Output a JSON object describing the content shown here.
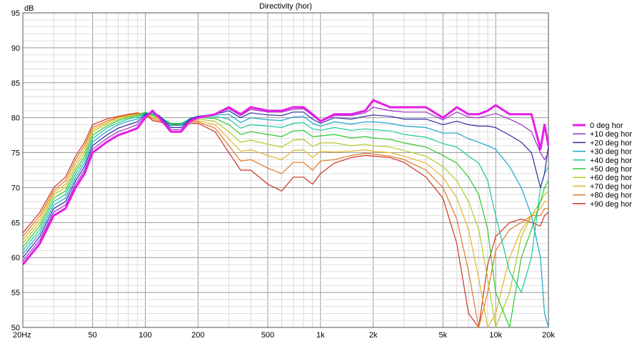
{
  "chart_data": {
    "type": "line",
    "title": "Directivity (hor)",
    "ylabel": "dB",
    "xscale": "log",
    "xlim": [
      20,
      20000
    ],
    "ylim": [
      50,
      95
    ],
    "y_ticks": [
      50,
      55,
      60,
      65,
      70,
      75,
      80,
      85,
      90,
      95
    ],
    "x_ticks": [
      {
        "value": 20,
        "label": "20Hz"
      },
      {
        "value": 50,
        "label": "50"
      },
      {
        "value": 100,
        "label": "100"
      },
      {
        "value": 200,
        "label": "200"
      },
      {
        "value": 500,
        "label": "500"
      },
      {
        "value": 1000,
        "label": "1k"
      },
      {
        "value": 2000,
        "label": "2k"
      },
      {
        "value": 5000,
        "label": "5k"
      },
      {
        "value": 10000,
        "label": "10k"
      },
      {
        "value": 20000,
        "label": "20k"
      }
    ],
    "grid": true,
    "legend_position": "right",
    "series": [
      {
        "name": "0 deg hor",
        "color": "#e61ee6",
        "x": [
          20,
          25,
          30,
          35,
          40,
          45,
          50,
          60,
          70,
          80,
          90,
          100,
          110,
          120,
          140,
          160,
          180,
          200,
          250,
          300,
          350,
          400,
          500,
          600,
          700,
          800,
          900,
          1000,
          1200,
          1500,
          1800,
          2000,
          2500,
          3000,
          4000,
          5000,
          6000,
          7000,
          8000,
          9000,
          10000,
          12000,
          14000,
          16000,
          18000,
          19000,
          20000
        ],
        "y": [
          59,
          62,
          66,
          67,
          70,
          72,
          75,
          76.5,
          77.5,
          78,
          78.5,
          80,
          81,
          80,
          78,
          78,
          79.5,
          80,
          80.5,
          81.5,
          80.5,
          81.5,
          81,
          81,
          81.5,
          81.5,
          80.5,
          79.5,
          80.5,
          80.5,
          81,
          82.5,
          81.5,
          81.5,
          81.5,
          80,
          81.5,
          80.5,
          80.5,
          81,
          81.8,
          80.5,
          80.5,
          80.5,
          75.5,
          79,
          76
        ]
      },
      {
        "name": "+10 deg hor",
        "color": "#9b30c8",
        "x": [
          20,
          25,
          30,
          35,
          40,
          45,
          50,
          60,
          70,
          80,
          90,
          100,
          110,
          120,
          140,
          160,
          180,
          200,
          250,
          300,
          350,
          400,
          500,
          600,
          700,
          800,
          900,
          1000,
          1200,
          1500,
          1800,
          2000,
          2500,
          3000,
          4000,
          5000,
          6000,
          7000,
          8000,
          9000,
          10000,
          12000,
          14000,
          16000,
          18000,
          19000,
          20000
        ],
        "y": [
          59.5,
          62.5,
          66.5,
          67.5,
          70.5,
          72.5,
          75.5,
          77,
          78,
          78.5,
          79,
          80.3,
          81,
          80.2,
          78.3,
          78.3,
          79.7,
          80.1,
          80.5,
          81.3,
          80.3,
          81.2,
          80.8,
          80.8,
          81.2,
          81.3,
          80.3,
          79.4,
          80.3,
          80.3,
          80.7,
          81.5,
          81,
          80.8,
          80.8,
          79.7,
          80.8,
          80.1,
          80,
          80.3,
          80.6,
          79.8,
          79,
          78,
          75,
          74,
          75
        ]
      },
      {
        "name": "+20 deg hor",
        "color": "#2b2ba0",
        "x": [
          20,
          25,
          30,
          35,
          40,
          45,
          50,
          60,
          70,
          80,
          90,
          100,
          110,
          120,
          140,
          160,
          180,
          200,
          250,
          300,
          350,
          400,
          500,
          600,
          700,
          800,
          900,
          1000,
          1200,
          1500,
          1800,
          2000,
          2500,
          3000,
          4000,
          5000,
          6000,
          7000,
          8000,
          9000,
          10000,
          12000,
          14000,
          16000,
          18000,
          19000,
          20000
        ],
        "y": [
          60,
          63,
          67,
          68,
          71,
          73,
          76,
          77.5,
          78.5,
          79,
          79.4,
          80.5,
          80.8,
          80.3,
          78.6,
          78.6,
          79.8,
          80.2,
          80.5,
          81,
          80,
          80.7,
          80.4,
          80.3,
          80.8,
          80.8,
          79.8,
          79.2,
          80,
          79.8,
          80.2,
          80.4,
          80.2,
          79.8,
          79.8,
          79,
          79.5,
          79,
          78.8,
          78.8,
          78.6,
          77.5,
          76.5,
          75,
          70,
          72,
          76
        ]
      },
      {
        "name": "+30 deg hor",
        "color": "#1aa6c8",
        "x": [
          20,
          25,
          30,
          35,
          40,
          45,
          50,
          60,
          70,
          80,
          90,
          100,
          110,
          120,
          140,
          160,
          180,
          200,
          250,
          300,
          350,
          400,
          500,
          600,
          700,
          800,
          900,
          1000,
          1200,
          1500,
          1800,
          2000,
          2500,
          3000,
          4000,
          5000,
          6000,
          7000,
          8000,
          9000,
          10000,
          12000,
          14000,
          16000,
          18000,
          19000,
          20000
        ],
        "y": [
          60.5,
          63.5,
          67.5,
          68.5,
          71.5,
          73.5,
          76.5,
          78,
          79,
          79.5,
          79.8,
          80.6,
          80.6,
          80.3,
          78.9,
          78.9,
          79.9,
          80.2,
          80.4,
          80.5,
          79.3,
          80,
          79.7,
          79.6,
          80.1,
          80.2,
          79.2,
          78.8,
          79.4,
          79.1,
          79.4,
          79.4,
          79.2,
          78.8,
          78.6,
          77.8,
          77.8,
          77,
          76.5,
          76,
          75.5,
          73,
          70,
          66,
          60,
          52,
          50
        ]
      },
      {
        "name": "+40 deg hor",
        "color": "#1ac8a0",
        "x": [
          20,
          25,
          30,
          35,
          40,
          45,
          50,
          60,
          70,
          80,
          90,
          100,
          110,
          120,
          140,
          160,
          180,
          200,
          250,
          300,
          350,
          400,
          500,
          600,
          700,
          800,
          900,
          1000,
          1200,
          1500,
          1800,
          2000,
          2500,
          3000,
          4000,
          5000,
          6000,
          7000,
          8000,
          9000,
          10000,
          12000,
          14000,
          16000,
          18000,
          19000,
          20000
        ],
        "y": [
          61,
          64,
          68,
          69,
          72,
          74,
          77,
          78.5,
          79.3,
          79.8,
          80.1,
          80.7,
          80.5,
          80.2,
          79.1,
          79.1,
          79.9,
          80.1,
          80.2,
          79.8,
          78.5,
          79,
          78.8,
          78.6,
          79.2,
          79.3,
          78.4,
          78.2,
          78.6,
          78.2,
          78.4,
          78.3,
          78.1,
          77.6,
          77.2,
          76.3,
          75.8,
          74.5,
          73.5,
          71,
          66,
          58,
          55,
          60,
          70,
          72,
          73
        ]
      },
      {
        "name": "+50 deg hor",
        "color": "#2ec82e",
        "x": [
          20,
          25,
          30,
          35,
          40,
          45,
          50,
          60,
          70,
          80,
          90,
          100,
          110,
          120,
          140,
          160,
          180,
          200,
          250,
          300,
          350,
          400,
          500,
          600,
          700,
          800,
          900,
          1000,
          1200,
          1500,
          1800,
          2000,
          2500,
          3000,
          4000,
          5000,
          6000,
          7000,
          8000,
          9000,
          10000,
          12000,
          14000,
          16000,
          18000,
          19000,
          20000
        ],
        "y": [
          61.5,
          64.5,
          68.5,
          69.5,
          72.5,
          74.5,
          77.5,
          78.8,
          79.6,
          80,
          80.3,
          80.8,
          80.4,
          80.1,
          79.2,
          79.2,
          79.8,
          80,
          79.9,
          79,
          77.6,
          78,
          77.6,
          77.3,
          78.1,
          78.2,
          77.3,
          77.4,
          77.6,
          77.1,
          77.3,
          77.1,
          76.9,
          76.4,
          75.8,
          74.6,
          73.5,
          71.5,
          69,
          64,
          55,
          50,
          60,
          64,
          68,
          70,
          71
        ]
      },
      {
        "name": "+60 deg hor",
        "color": "#b4c828",
        "x": [
          20,
          25,
          30,
          35,
          40,
          45,
          50,
          60,
          70,
          80,
          90,
          100,
          110,
          120,
          140,
          160,
          180,
          200,
          250,
          300,
          350,
          400,
          500,
          600,
          700,
          800,
          900,
          1000,
          1200,
          1500,
          1800,
          2000,
          2500,
          3000,
          4000,
          5000,
          6000,
          7000,
          8000,
          9000,
          10000,
          12000,
          14000,
          16000,
          18000,
          19000,
          20000
        ],
        "y": [
          62,
          65,
          69,
          70,
          73,
          75,
          78,
          79.1,
          79.8,
          80.2,
          80.4,
          80.8,
          80.2,
          80,
          79.2,
          79.2,
          79.7,
          79.8,
          79.5,
          78,
          76.5,
          76.8,
          76.2,
          75.8,
          76.8,
          76.9,
          75.9,
          76.4,
          76.4,
          76,
          76.2,
          76,
          75.8,
          75.3,
          74.5,
          73,
          71,
          68,
          64,
          57,
          50,
          55,
          63,
          66,
          68,
          69,
          69.5
        ]
      },
      {
        "name": "+70 deg hor",
        "color": "#e6b428",
        "x": [
          20,
          25,
          30,
          35,
          40,
          45,
          50,
          60,
          70,
          80,
          90,
          100,
          110,
          120,
          140,
          160,
          180,
          200,
          250,
          300,
          350,
          400,
          500,
          600,
          700,
          800,
          900,
          1000,
          1200,
          1500,
          1800,
          2000,
          2500,
          3000,
          4000,
          5000,
          6000,
          7000,
          8000,
          9000,
          10000,
          12000,
          14000,
          16000,
          18000,
          19000,
          20000
        ],
        "y": [
          62.5,
          65.5,
          69.3,
          70.5,
          73.5,
          75.5,
          78.3,
          79.3,
          80,
          80.3,
          80.5,
          80.7,
          80,
          79.8,
          79.2,
          79.2,
          79.6,
          79.6,
          79,
          77,
          75.2,
          75.4,
          74.6,
          74,
          75.3,
          75.4,
          74.3,
          75.2,
          75.1,
          75.2,
          75.4,
          75.2,
          75,
          74.5,
          73.5,
          71.5,
          68.5,
          64,
          57,
          50,
          52,
          60,
          64,
          66,
          67,
          68,
          68
        ]
      },
      {
        "name": "+80 deg hor",
        "color": "#e0782a",
        "x": [
          20,
          25,
          30,
          35,
          40,
          45,
          50,
          60,
          70,
          80,
          90,
          100,
          110,
          120,
          140,
          160,
          180,
          200,
          250,
          300,
          350,
          400,
          500,
          600,
          700,
          800,
          900,
          1000,
          1200,
          1500,
          1800,
          2000,
          2500,
          3000,
          4000,
          5000,
          6000,
          7000,
          8000,
          9000,
          10000,
          12000,
          14000,
          16000,
          18000,
          19000,
          20000
        ],
        "y": [
          63,
          66,
          69.6,
          71,
          74,
          76,
          78.6,
          79.5,
          80.1,
          80.4,
          80.6,
          80.6,
          79.8,
          79.6,
          79.1,
          79.1,
          79.4,
          79.4,
          78.5,
          76,
          73.8,
          74,
          72.8,
          72,
          73.6,
          73.6,
          72.5,
          73.8,
          74,
          74.6,
          74.9,
          74.8,
          74.5,
          74,
          72.5,
          70,
          65.5,
          58,
          50,
          55,
          61,
          64,
          65,
          66,
          66,
          67,
          67
        ]
      },
      {
        "name": "+90 deg hor",
        "color": "#cc3322",
        "x": [
          20,
          25,
          30,
          35,
          40,
          45,
          50,
          60,
          70,
          80,
          90,
          100,
          110,
          120,
          140,
          160,
          180,
          200,
          250,
          300,
          350,
          400,
          500,
          600,
          700,
          800,
          900,
          1000,
          1200,
          1500,
          1800,
          2000,
          2500,
          3000,
          4000,
          5000,
          6000,
          7000,
          8000,
          9000,
          10000,
          12000,
          14000,
          16000,
          18000,
          19000,
          20000
        ],
        "y": [
          63.5,
          66.5,
          70,
          71.5,
          74.5,
          76.5,
          79,
          79.8,
          80.2,
          80.5,
          80.7,
          80.5,
          79.6,
          79.4,
          79,
          79,
          79.2,
          79.2,
          78,
          75,
          72.5,
          72.5,
          70.5,
          69.5,
          71.5,
          71.5,
          70.5,
          72,
          73.5,
          74.3,
          74.6,
          74.5,
          74.3,
          73.6,
          71.5,
          68.5,
          62,
          52,
          50,
          59,
          63,
          65,
          65.5,
          65,
          64.5,
          66,
          66.5
        ]
      }
    ]
  }
}
